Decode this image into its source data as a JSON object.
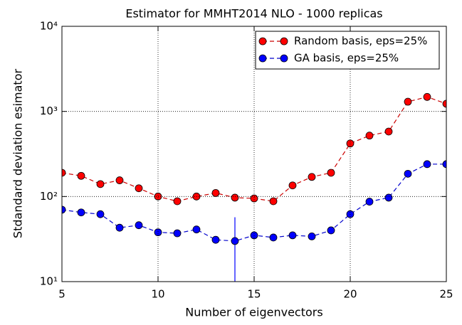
{
  "chart_data": {
    "type": "line",
    "title": "Estimator for MMHT2014 NLO - 1000 replicas",
    "xlabel": "Number of eigenvectors",
    "ylabel": "Stdandard deviation esimator",
    "x": [
      5,
      6,
      7,
      8,
      9,
      10,
      11,
      12,
      13,
      14,
      15,
      16,
      17,
      18,
      19,
      20,
      21,
      22,
      23,
      24,
      25
    ],
    "xlim": [
      5,
      25
    ],
    "xticks": [
      5,
      10,
      15,
      20,
      25
    ],
    "ylim": [
      10,
      10000
    ],
    "log_y": true,
    "yticks": [
      {
        "value": 10,
        "label": "10¹"
      },
      {
        "value": 100,
        "label": "10²"
      },
      {
        "value": 1000,
        "label": "10³"
      },
      {
        "value": 10000,
        "label": "10⁴"
      }
    ],
    "grid": true,
    "legend": "upper right",
    "series": [
      {
        "name": "Random basis, eps=25%",
        "color": "#ff0000",
        "line_color": "#cc0000",
        "values": [
          190,
          175,
          140,
          155,
          125,
          100,
          88,
          100,
          110,
          97,
          95,
          88,
          135,
          170,
          190,
          420,
          520,
          580,
          1300,
          1480,
          1230
        ]
      },
      {
        "name": "GA basis, eps=25%",
        "color": "#0000ff",
        "line_color": "#0000cc",
        "values": [
          70,
          65,
          62,
          43,
          46,
          38,
          37,
          41,
          31,
          30,
          35,
          33,
          35,
          34,
          40,
          62,
          87,
          97,
          185,
          240,
          240
        ],
        "errors": [
          null,
          null,
          null,
          null,
          null,
          null,
          null,
          null,
          null,
          27,
          null,
          null,
          null,
          null,
          null,
          null,
          null,
          null,
          null,
          null,
          null
        ]
      }
    ]
  }
}
